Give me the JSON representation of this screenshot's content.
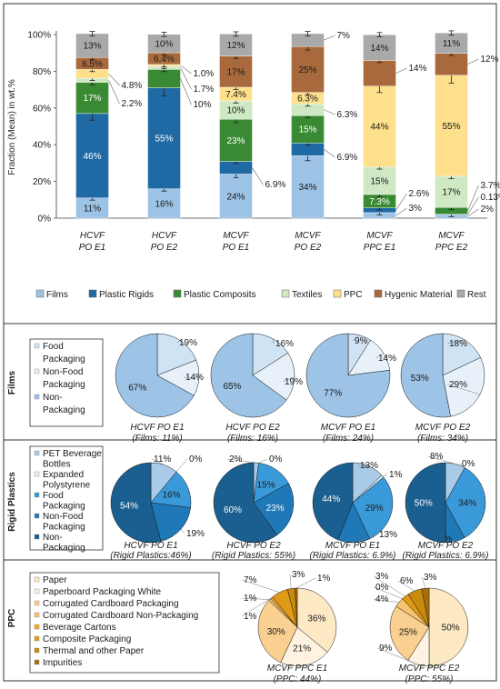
{
  "colors": {
    "Films": "#9dc3e6",
    "Plastic Rigids": "#1f6aa5",
    "Plastic Composits": "#3a8a34",
    "Textiles": "#cfe9c4",
    "PPC": "#fddf8c",
    "Hygenic Material": "#a86a3d",
    "Rest": "#a9a9a9"
  },
  "chart_data": [
    {
      "type": "bar",
      "stacked": true,
      "ylabel": "Fraction (Mean) in wt.%",
      "ylim": [
        0,
        100
      ],
      "yticks": [
        "0%",
        "20%",
        "40%",
        "60%",
        "80%",
        "100%"
      ],
      "categories": [
        {
          "line1": "HCVF",
          "line2": "PO E1"
        },
        {
          "line1": "HCVF",
          "line2": "PO E2"
        },
        {
          "line1": "MCVF",
          "line2": "PO E1"
        },
        {
          "line1": "MCVF",
          "line2": "PO E2"
        },
        {
          "line1": "MCVF",
          "line2": "PPC E1"
        },
        {
          "line1": "MCVF",
          "line2": "PPC E2"
        }
      ],
      "series": [
        {
          "name": "Films",
          "values": [
            11,
            16,
            24,
            34,
            3,
            2
          ],
          "labels": [
            "11%",
            "16%",
            "24%",
            "34%",
            "3%",
            "2%"
          ]
        },
        {
          "name": "Plastic Rigids",
          "values": [
            46,
            55,
            6.9,
            6.9,
            2.6,
            0.13
          ],
          "labels": [
            "46%",
            "55%",
            "6.9%",
            "6.9%",
            "2.6%",
            "0.13%"
          ]
        },
        {
          "name": "Plastic Composits",
          "values": [
            17,
            10,
            23,
            15,
            7.3,
            3.7
          ],
          "labels": [
            "17%",
            "10%",
            "23%",
            "15%",
            "7.3%",
            "3.7%"
          ]
        },
        {
          "name": "Textiles",
          "values": [
            2.2,
            1.7,
            10,
            6.3,
            15,
            17
          ],
          "labels": [
            "2.2%",
            "1.7%",
            "10%",
            "6.3%",
            "15%",
            "17%"
          ]
        },
        {
          "name": "PPC",
          "values": [
            4.8,
            1.0,
            7.4,
            6.3,
            44,
            55
          ],
          "labels": [
            "4.8%",
            "1.0%",
            "7.4%",
            "6.3%",
            "44%",
            "55%"
          ]
        },
        {
          "name": "Hygenic Material",
          "values": [
            6.5,
            6.4,
            17,
            25,
            14,
            12
          ],
          "labels": [
            "6.5%",
            "6.4%",
            "17%",
            "25%",
            "14%",
            "12%"
          ]
        },
        {
          "name": "Rest",
          "values": [
            13,
            10,
            12,
            7,
            14,
            11
          ],
          "labels": [
            "13%",
            "10%",
            "12%",
            "7%",
            "14%",
            "11%"
          ]
        }
      ],
      "legend": [
        "Films",
        "Plastic Rigids",
        "Plastic Composits",
        "Textiles",
        "PPC",
        "Hygenic Material",
        "Rest"
      ]
    },
    {
      "type": "pie",
      "row_label": "Films",
      "legend": [
        {
          "name": "Food Packaging",
          "color": "#cfe3f4"
        },
        {
          "name": "Non-Food Packaging",
          "color": "#e8f1fa"
        },
        {
          "name": "Non-Packaging",
          "color": "#9dc3e6"
        }
      ],
      "pies": [
        {
          "title1": "HCVF PO E1",
          "title2": "(Films: 11%)",
          "values": [
            19,
            14,
            67
          ],
          "labels": [
            "19%",
            "14%",
            "67%"
          ]
        },
        {
          "title1": "HCVF PO E2",
          "title2": "(Films: 16%)",
          "values": [
            16,
            19,
            65
          ],
          "labels": [
            "16%",
            "19%",
            "65%"
          ]
        },
        {
          "title1": "MCVF PO E1",
          "title2": "(Films: 24%)",
          "values": [
            9,
            14,
            77
          ],
          "labels": [
            "9%",
            "14%",
            "77%"
          ]
        },
        {
          "title1": "MCVF PO E2",
          "title2": "(Films: 34%)",
          "values": [
            18,
            29,
            53
          ],
          "labels": [
            "18%",
            "29%",
            "53%"
          ]
        }
      ]
    },
    {
      "type": "pie",
      "row_label": "Rigid Plastics",
      "legend": [
        {
          "name": "PET Beverage Bottles",
          "color": "#a9cbe8"
        },
        {
          "name": "Expanded Polystyrene",
          "color": "#e6eef7"
        },
        {
          "name": "Food Packaging",
          "color": "#3a9ad9"
        },
        {
          "name": "Non-Food Packaging",
          "color": "#1f78b8"
        },
        {
          "name": "Non-Packaging",
          "color": "#1a5f8f"
        }
      ],
      "pies": [
        {
          "title1": "HCVF PO E1",
          "title2": "(Rigid Plastics:46%)",
          "values": [
            11,
            0,
            16,
            19,
            54
          ],
          "labels": [
            "11%",
            "0%",
            "16%",
            "19%",
            "54%"
          ]
        },
        {
          "title1": "HCVF PO E2",
          "title2": "(Rigid Plastics: 55%)",
          "values": [
            2,
            0,
            15,
            23,
            60
          ],
          "labels": [
            "2%",
            "0%",
            "15%",
            "23%",
            "60%"
          ]
        },
        {
          "title1": "MCVF PO E1",
          "title2": "(Rigid Plastics: 6.9%)",
          "values": [
            13,
            1,
            29,
            13,
            44
          ],
          "labels": [
            "13%",
            "1%",
            "29%",
            "13%",
            "44%"
          ]
        },
        {
          "title1": "MCVF PO E2",
          "title2": "(Rigid Plastics: 6.9%)",
          "values": [
            8,
            0,
            34,
            8,
            50
          ],
          "labels": [
            "8%",
            "0%",
            "34%",
            "8%",
            "50%"
          ]
        }
      ]
    },
    {
      "type": "pie",
      "row_label": "PPC",
      "legend": [
        {
          "name": "Paper",
          "color": "#fde9c4"
        },
        {
          "name": "Paperboard Packaging White",
          "color": "#fdf3e0"
        },
        {
          "name": "Corrugated Cardboard Packaging",
          "color": "#f9d08f"
        },
        {
          "name": "Corrugated Cardboard Non-Packaging",
          "color": "#f6c46e"
        },
        {
          "name": "Beverage Cartons",
          "color": "#f0ab2e"
        },
        {
          "name": "Composite Packaging",
          "color": "#e09a15"
        },
        {
          "name": "Thermal and other Paper",
          "color": "#c98a10"
        },
        {
          "name": "Impurities",
          "color": "#a9700a"
        }
      ],
      "pies": [
        {
          "title1": "MCVF PPC E1",
          "title2": "(PPC: 44%)",
          "values": [
            36,
            21,
            30,
            1,
            1,
            7,
            3,
            1
          ],
          "labels": [
            "36%",
            "21%",
            "30%",
            "1%",
            "1%",
            "7%",
            "3%",
            "1%"
          ]
        },
        {
          "title1": "MCVF PPC E2",
          "title2": "(PPC: 55%)",
          "values": [
            50,
            9,
            25,
            4,
            0,
            3,
            6,
            3
          ],
          "labels": [
            "50%",
            "9%",
            "25%",
            "4%",
            "0%",
            "3%",
            "6%",
            "3%"
          ]
        }
      ]
    }
  ]
}
